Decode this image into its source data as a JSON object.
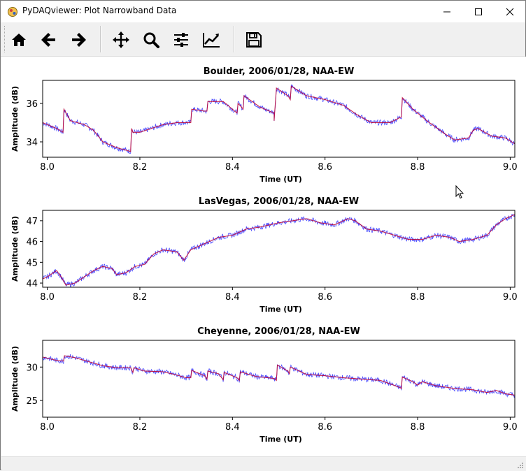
{
  "window": {
    "title": "PyDAQviewer: Plot Narrowband Data"
  },
  "toolbar": {
    "items": [
      {
        "name": "home-icon",
        "label": "Home"
      },
      {
        "name": "back-icon",
        "label": "Back"
      },
      {
        "name": "forward-icon",
        "label": "Forward"
      },
      {
        "name": "pan-icon",
        "label": "Pan"
      },
      {
        "name": "zoom-icon",
        "label": "Zoom"
      },
      {
        "name": "configure-subplots-icon",
        "label": "Configure subplots"
      },
      {
        "name": "edit-axis-icon",
        "label": "Edit axis"
      },
      {
        "name": "save-icon",
        "label": "Save"
      }
    ]
  },
  "colors": {
    "raw": "#4a4aff",
    "smoothed": "#c00030"
  },
  "chart_data": [
    {
      "type": "line",
      "title": "Boulder, 2006/01/28, NAA-EW",
      "xlabel": "Time (UT)",
      "ylabel": "Amplitude (dB)",
      "xlim": [
        7.99,
        9.01
      ],
      "ylim": [
        33.2,
        37.2
      ],
      "xticks": [
        8.0,
        8.2,
        8.4,
        8.6,
        8.8,
        9.0
      ],
      "xticklabels": [
        "8.0",
        "8.2",
        "8.4",
        "8.6",
        "8.8",
        "9.0"
      ],
      "yticks": [
        34,
        36
      ],
      "yticklabels": [
        "34",
        "36"
      ],
      "series": [
        {
          "style": "raw",
          "x": [
            7.99,
            8.02,
            8.034,
            8.036,
            8.05,
            8.08,
            8.1,
            8.12,
            8.15,
            8.18,
            8.182,
            8.185,
            8.2,
            8.25,
            8.28,
            8.31,
            8.312,
            8.34,
            8.345,
            8.347,
            8.38,
            8.41,
            8.412,
            8.42,
            8.423,
            8.425,
            8.46,
            8.49,
            8.49,
            8.495,
            8.52,
            8.525,
            8.527,
            8.56,
            8.6,
            8.64,
            8.67,
            8.7,
            8.74,
            8.765,
            8.767,
            8.79,
            8.82,
            8.86,
            8.88,
            8.91,
            8.92,
            8.93,
            8.96,
            8.99,
            9.01
          ],
          "y": [
            35.0,
            34.7,
            34.5,
            35.7,
            35.1,
            34.9,
            34.6,
            34.0,
            33.7,
            33.5,
            34.7,
            34.5,
            34.5,
            34.9,
            35.0,
            35.0,
            35.7,
            35.6,
            35.6,
            36.1,
            36.1,
            35.5,
            36.0,
            35.8,
            35.7,
            36.4,
            35.8,
            35.5,
            35.1,
            36.8,
            36.4,
            36.2,
            36.9,
            36.4,
            36.2,
            35.9,
            35.4,
            35.0,
            35.0,
            35.3,
            36.3,
            35.7,
            35.1,
            34.4,
            34.1,
            34.2,
            34.6,
            34.7,
            34.3,
            34.2,
            33.9
          ]
        }
      ]
    },
    {
      "type": "line",
      "title": "LasVegas, 2006/01/28, NAA-EW",
      "xlabel": "Time (UT)",
      "ylabel": "Amplitude (dB)",
      "xlim": [
        7.99,
        9.01
      ],
      "ylim": [
        43.8,
        47.5
      ],
      "xticks": [
        8.0,
        8.2,
        8.4,
        8.6,
        8.8,
        9.0
      ],
      "xticklabels": [
        "8.0",
        "8.2",
        "8.4",
        "8.6",
        "8.8",
        "9.0"
      ],
      "yticks": [
        44,
        45,
        46,
        47
      ],
      "yticklabels": [
        "44",
        "45",
        "46",
        "47"
      ],
      "series": [
        {
          "style": "raw",
          "x": [
            7.99,
            8.0,
            8.02,
            8.03,
            8.04,
            8.06,
            8.08,
            8.1,
            8.12,
            8.14,
            8.15,
            8.17,
            8.19,
            8.21,
            8.23,
            8.25,
            8.28,
            8.295,
            8.31,
            8.33,
            8.35,
            8.37,
            8.4,
            8.43,
            8.46,
            8.5,
            8.53,
            8.56,
            8.59,
            8.62,
            8.65,
            8.665,
            8.69,
            8.72,
            8.75,
            8.78,
            8.81,
            8.84,
            8.87,
            8.89,
            8.92,
            8.95,
            8.97,
            8.99,
            9.01
          ],
          "y": [
            44.2,
            44.3,
            44.6,
            44.3,
            43.9,
            44.0,
            44.3,
            44.6,
            44.8,
            44.7,
            44.4,
            44.5,
            44.8,
            44.9,
            45.4,
            45.6,
            45.5,
            45.1,
            45.6,
            45.8,
            46.0,
            46.2,
            46.3,
            46.6,
            46.7,
            46.9,
            47.0,
            47.1,
            46.9,
            46.8,
            47.1,
            47.0,
            46.6,
            46.5,
            46.3,
            46.1,
            46.1,
            46.3,
            46.2,
            46.0,
            46.1,
            46.3,
            46.8,
            47.1,
            47.3
          ]
        }
      ]
    },
    {
      "type": "line",
      "title": "Cheyenne, 2006/01/28, NAA-EW",
      "xlabel": "Time (UT)",
      "ylabel": "Amplitude (dB)",
      "xlim": [
        7.99,
        9.01
      ],
      "ylim": [
        22.5,
        34.0
      ],
      "xticks": [
        8.0,
        8.2,
        8.4,
        8.6,
        8.8,
        9.0
      ],
      "xticklabels": [
        "8.0",
        "8.2",
        "8.4",
        "8.6",
        "8.8",
        "9.0"
      ],
      "yticks": [
        25,
        30
      ],
      "yticklabels": [
        "25",
        "30"
      ],
      "series": [
        {
          "style": "raw",
          "x": [
            7.99,
            8.02,
            8.035,
            8.037,
            8.06,
            8.09,
            8.12,
            8.15,
            8.18,
            8.185,
            8.187,
            8.21,
            8.25,
            8.28,
            8.3,
            8.31,
            8.312,
            8.34,
            8.345,
            8.347,
            8.37,
            8.38,
            8.382,
            8.41,
            8.415,
            8.417,
            8.45,
            8.49,
            8.495,
            8.497,
            8.52,
            8.523,
            8.525,
            8.56,
            8.6,
            8.64,
            8.68,
            8.72,
            8.76,
            8.765,
            8.767,
            8.79,
            8.8,
            8.81,
            8.84,
            8.88,
            8.92,
            8.95,
            8.97,
            8.99,
            9.01
          ],
          "y": [
            31.5,
            31.0,
            30.9,
            31.7,
            31.4,
            30.8,
            30.2,
            29.9,
            29.9,
            29.2,
            29.9,
            29.4,
            29.3,
            28.8,
            28.4,
            28.4,
            29.5,
            28.7,
            28.2,
            29.4,
            29.0,
            28.1,
            29.2,
            28.4,
            28.0,
            29.3,
            28.6,
            28.3,
            28.0,
            30.3,
            29.4,
            29.0,
            30.0,
            28.9,
            28.7,
            28.4,
            28.2,
            28.0,
            27.0,
            26.8,
            28.5,
            27.8,
            27.3,
            27.8,
            27.2,
            26.8,
            26.6,
            26.2,
            26.5,
            26.0,
            25.8
          ]
        }
      ]
    }
  ]
}
